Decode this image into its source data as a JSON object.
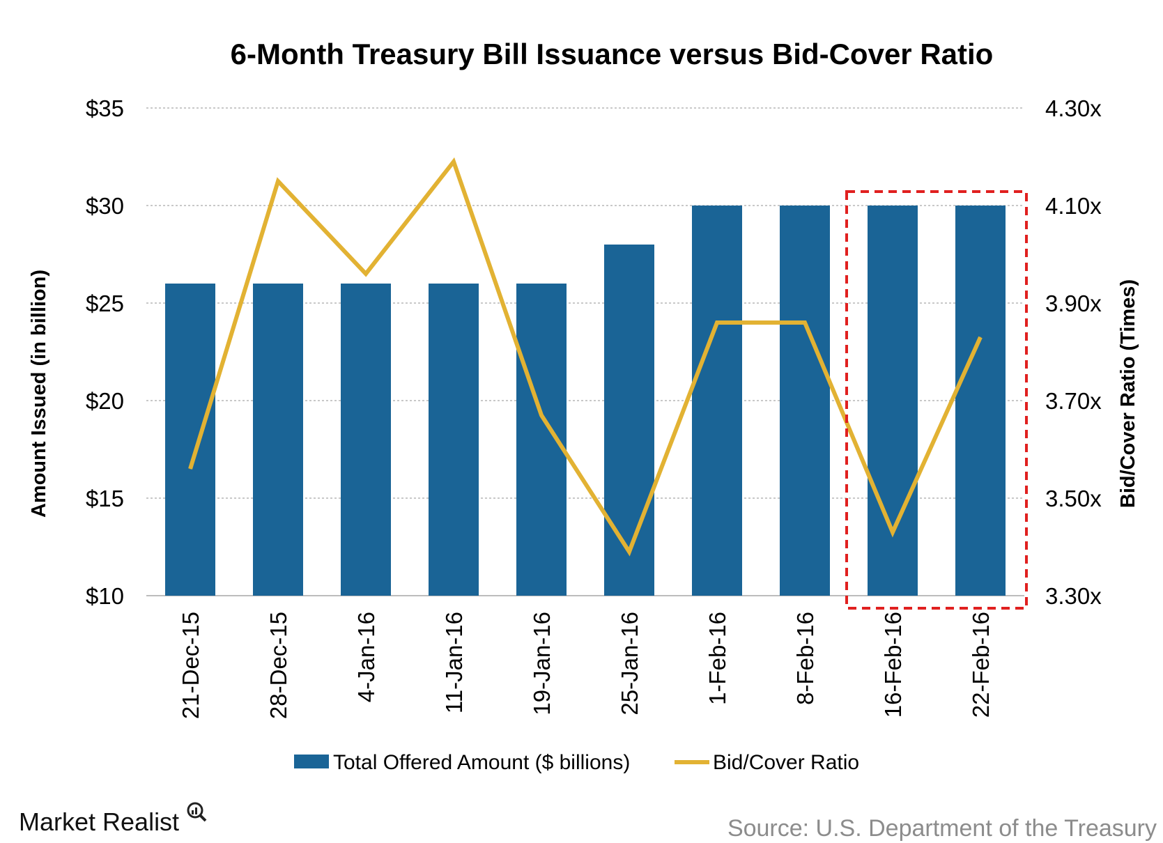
{
  "chart_data": {
    "type": "bar",
    "title": "6-Month Treasury Bill Issuance versus Bid-Cover Ratio",
    "categories": [
      "21-Dec-15",
      "28-Dec-15",
      "4-Jan-16",
      "11-Jan-16",
      "19-Jan-16",
      "25-Jan-16",
      "1-Feb-16",
      "8-Feb-16",
      "16-Feb-16",
      "22-Feb-16"
    ],
    "series": [
      {
        "name": "Total Offered Amount ($ billions)",
        "type": "bar",
        "axis": "left",
        "color": "#1a6496",
        "values": [
          26,
          26,
          26,
          26,
          26,
          28,
          30,
          30,
          30,
          30
        ]
      },
      {
        "name": "Bid/Cover Ratio",
        "type": "line",
        "axis": "right",
        "color": "#e2b233",
        "values": [
          3.56,
          4.15,
          3.96,
          4.19,
          3.67,
          3.39,
          3.86,
          3.86,
          3.43,
          3.83
        ]
      }
    ],
    "ylabel": "Amount Issued (in billion)",
    "ylabel_right": "Bid/Cover Ratio (Times)",
    "ylim": [
      10,
      35
    ],
    "ylim_right": [
      3.3,
      4.3
    ],
    "yticks": [
      "$10",
      "$15",
      "$20",
      "$25",
      "$30",
      "$35"
    ],
    "yticks_right": [
      "3.30x",
      "3.50x",
      "3.70x",
      "3.90x",
      "4.10x",
      "4.30x"
    ],
    "grid": true,
    "legend_position": "bottom",
    "highlight_categories": [
      "16-Feb-16",
      "22-Feb-16"
    ],
    "highlight_color": "#e0201f"
  },
  "brand": "Market Realist",
  "source": "Source: U.S. Department of the Treasury"
}
